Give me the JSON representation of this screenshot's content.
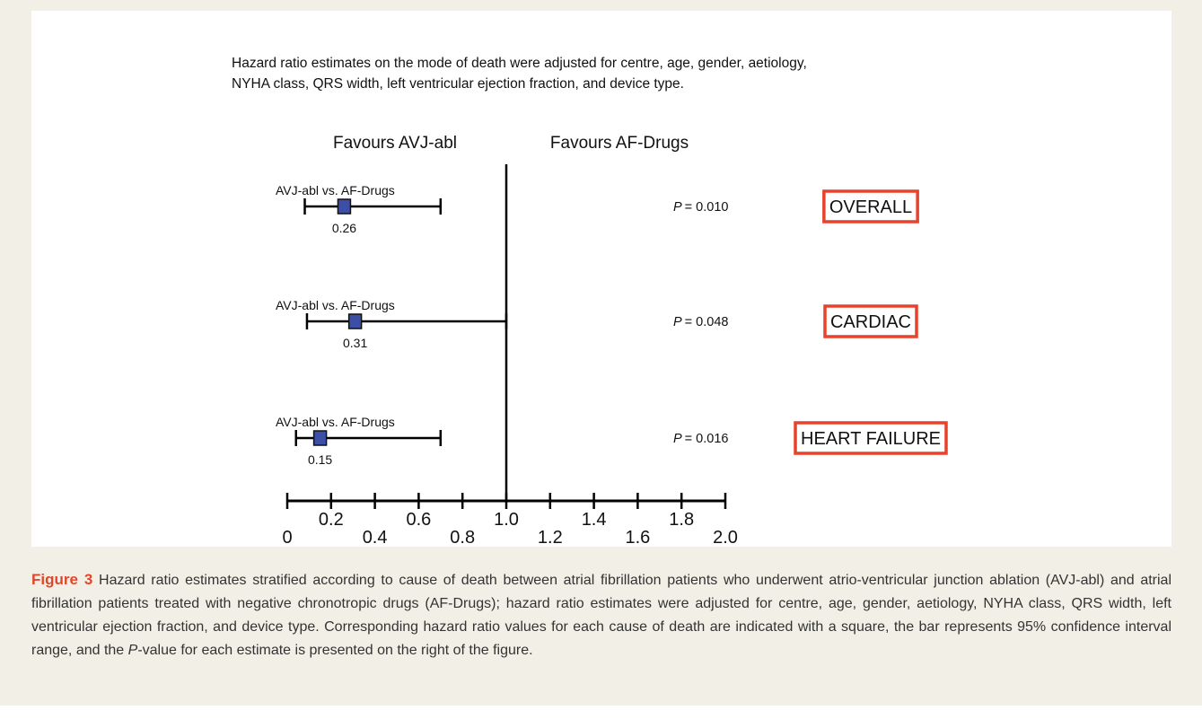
{
  "chart_data": {
    "type": "forest",
    "note": [
      "Hazard ratio estimates on the mode of death were adjusted for centre, age, gender, aetiology,",
      "NYHA class, QRS width, left ventricular ejection fraction, and device type."
    ],
    "favours_left": "Favours AVJ-abl",
    "favours_right": "Favours AF-Drugs",
    "row_labels": [
      "AVJ-abl vs. AF-Drugs",
      "AVJ-abl vs. AF-Drugs",
      "AVJ-abl vs. AF-Drugs"
    ],
    "groups": [
      "OVERALL",
      "CARDIAC",
      "HEART FAILURE"
    ],
    "values": [
      0.26,
      0.31,
      0.15
    ],
    "ci_low": [
      0.08,
      0.09,
      0.04
    ],
    "ci_high": [
      0.7,
      1.0,
      0.7
    ],
    "p_symbol": "P",
    "p_values": [
      "= 0.010",
      "= 0.048",
      "= 0.016"
    ],
    "reference": 1,
    "color": "#3b4fa6",
    "group_box_color": "#e8412c",
    "xlim": [
      0,
      2
    ],
    "xticks": [
      0,
      0.2,
      0.4,
      0.6,
      0.8,
      {
        "value": 1,
        "label": "1.0"
      },
      1.2,
      1.4,
      1.6,
      1.8,
      {
        "value": 2,
        "label": "2.0"
      }
    ]
  },
  "caption": {
    "label": "Figure 3",
    "text": " Hazard ratio estimates stratified according to cause of death between atrial fibrillation patients who underwent atrio-ventricular junction ablation (AVJ-abl) and atrial fibrillation patients treated with negative chronotropic drugs (AF-Drugs); hazard ratio estimates were adjusted for centre, age, gender, aetiology, NYHA class, QRS width, left ventricular ejection fraction, and device type. Corresponding hazard ratio values for each cause of death are indicated with a square, the bar represents 95% confidence interval range, and the ",
    "italic": "P",
    "text_end": "-value for each estimate is presented on the right of the figure."
  }
}
